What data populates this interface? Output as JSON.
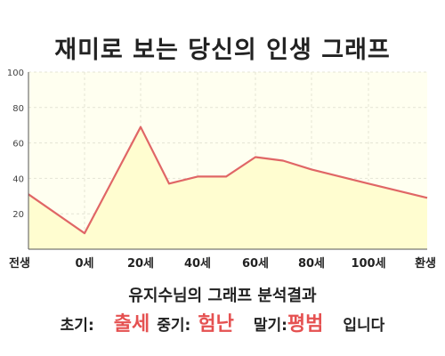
{
  "title": "재미로 보는 당신의 인생 그래프",
  "chart_data": {
    "type": "area",
    "x_categories": [
      "전생",
      "0세",
      "20세",
      "40세",
      "60세",
      "80세",
      "100세",
      "환생"
    ],
    "points": [
      {
        "x": "전생",
        "y": 31
      },
      {
        "x": "0세",
        "y": 9
      },
      {
        "x": "20세",
        "y": 69
      },
      {
        "x": "30세",
        "y": 37
      },
      {
        "x": "40세",
        "y": 41
      },
      {
        "x": "50세",
        "y": 41
      },
      {
        "x": "60세",
        "y": 52
      },
      {
        "x": "70세",
        "y": 50
      },
      {
        "x": "80세",
        "y": 45
      },
      {
        "x": "100세",
        "y": 37
      },
      {
        "x": "환생",
        "y": 29
      }
    ],
    "ylim": [
      0,
      100
    ],
    "yticks": [
      20,
      40,
      60,
      80,
      100
    ],
    "grid": true,
    "colors": {
      "line": "#e06666",
      "fill": "#fffdd0",
      "plot_bg": "#fffff0"
    }
  },
  "summary": {
    "title": "유지수님의 그래프 분석결과",
    "early_label": "초기:",
    "early_value": "출세",
    "middle_label": "중기:",
    "middle_value": "험난",
    "late_label": "말기:",
    "late_value": "평범",
    "suffix": "입니다"
  }
}
